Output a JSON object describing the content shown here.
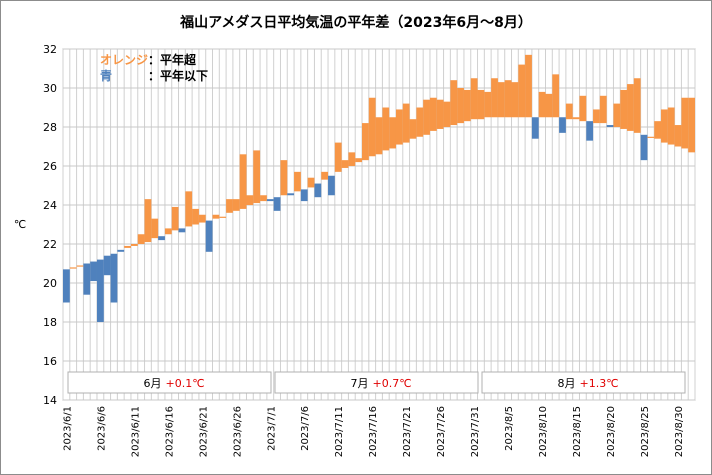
{
  "chart_data": {
    "type": "bar",
    "subtype": "floating-anomaly",
    "title": "福山アメダス日平均気温の平年差（2023年6月～8月）",
    "ylabel": "℃",
    "xlabel": "",
    "ylim": [
      14,
      32
    ],
    "ytick_step": 2,
    "grid": true,
    "legend": [
      {
        "label": "オレンジ",
        "desc": "：平年超",
        "color": "#F79646"
      },
      {
        "label": "青",
        "desc": "：平年以下",
        "color": "#4F81BD"
      }
    ],
    "colors": {
      "above": "#F79646",
      "below": "#4F81BD"
    },
    "x_tick_labels": [
      "2023/6/1",
      "2023/6/6",
      "2023/6/11",
      "2023/6/16",
      "2023/6/21",
      "2023/6/26",
      "2023/7/1",
      "2023/7/6",
      "2023/7/11",
      "2023/7/16",
      "2023/7/21",
      "2023/7/26",
      "2023/7/31",
      "2023/8/5",
      "2023/8/10",
      "2023/8/15",
      "2023/8/20",
      "2023/8/25",
      "2023/8/30"
    ],
    "normal": [
      20.7,
      20.8,
      20.9,
      21.0,
      21.1,
      21.2,
      21.4,
      21.5,
      21.7,
      21.8,
      21.9,
      22.0,
      22.1,
      22.3,
      22.4,
      22.5,
      22.7,
      22.8,
      22.9,
      23.0,
      23.1,
      23.2,
      23.3,
      23.4,
      23.6,
      23.7,
      23.8,
      24.0,
      24.1,
      24.2,
      24.3,
      24.4,
      24.5,
      24.6,
      24.7,
      24.8,
      24.9,
      25.1,
      25.3,
      25.5,
      25.7,
      25.9,
      26.0,
      26.2,
      26.3,
      26.5,
      26.6,
      26.8,
      26.9,
      27.1,
      27.2,
      27.4,
      27.5,
      27.6,
      27.8,
      27.9,
      28.0,
      28.1,
      28.2,
      28.3,
      28.4,
      28.4,
      28.5,
      28.5,
      28.5,
      28.5,
      28.5,
      28.5,
      28.5,
      28.5,
      28.5,
      28.5,
      28.5,
      28.5,
      28.4,
      28.4,
      28.3,
      28.3,
      28.2,
      28.2,
      28.1,
      28.0,
      27.9,
      27.8,
      27.7,
      27.6,
      27.5,
      27.4,
      27.2,
      27.1,
      27.0,
      26.9,
      26.7
    ],
    "actual": [
      19.0,
      20.8,
      20.9,
      19.4,
      20.1,
      18.0,
      20.4,
      19.0,
      21.6,
      21.9,
      22.0,
      22.5,
      24.3,
      23.3,
      22.2,
      22.8,
      23.9,
      22.6,
      24.7,
      23.8,
      23.5,
      21.6,
      23.5,
      23.4,
      24.3,
      24.3,
      26.6,
      24.5,
      26.8,
      24.5,
      24.2,
      23.7,
      26.3,
      24.5,
      25.7,
      24.2,
      25.4,
      24.4,
      25.7,
      24.5,
      27.2,
      26.3,
      26.7,
      26.4,
      28.2,
      29.5,
      28.5,
      29.0,
      28.5,
      28.9,
      29.2,
      28.4,
      29.0,
      29.4,
      29.5,
      29.4,
      29.3,
      30.4,
      30.0,
      29.9,
      30.5,
      29.9,
      29.8,
      30.5,
      30.3,
      30.4,
      30.3,
      31.2,
      31.7,
      27.4,
      29.8,
      29.7,
      30.7,
      27.7,
      29.2,
      28.5,
      29.6,
      27.3,
      28.9,
      29.6,
      28.0,
      29.2,
      29.9,
      30.2,
      30.5,
      26.3,
      27.5,
      28.3,
      28.9,
      29.0,
      28.1,
      29.5,
      29.5
    ],
    "monthly_summary": [
      {
        "month": "6月",
        "anomaly": "+0.1℃"
      },
      {
        "month": "7月",
        "anomaly": "+0.7℃"
      },
      {
        "month": "8月",
        "anomaly": "+1.3℃"
      }
    ]
  }
}
